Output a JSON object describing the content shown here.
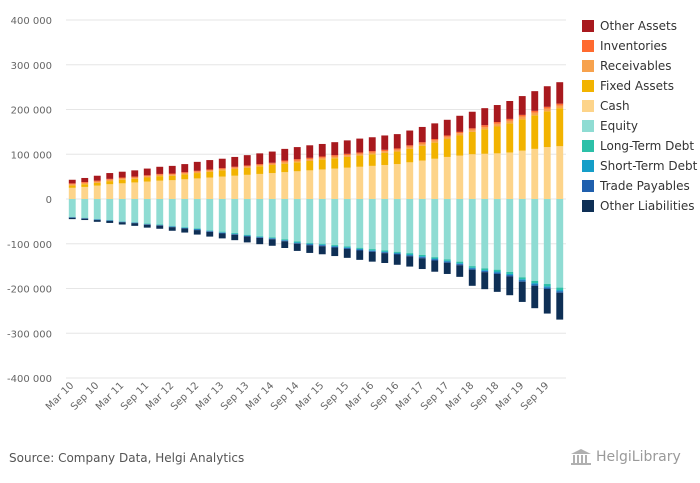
{
  "colors": {
    "other_assets": "#a8191e",
    "inventories": "#ff6a2f",
    "receivables": "#f7a24d",
    "fixed_assets": "#f2b300",
    "cash": "#fdd48a",
    "equity": "#8fdcd3",
    "long_term_debt": "#2cc0a8",
    "short_term_debt": "#159ec8",
    "trade_payables": "#1f5fad",
    "other_liabilities": "#0e2f55",
    "grid": "#e6e6e6",
    "axis_text": "#666666"
  },
  "legend": [
    {
      "label": "Other Assets",
      "color": "#a8191e"
    },
    {
      "label": "Inventories",
      "color": "#ff6a2f"
    },
    {
      "label": "Receivables",
      "color": "#f7a24d"
    },
    {
      "label": "Fixed Assets",
      "color": "#f2b300"
    },
    {
      "label": "Cash",
      "color": "#fdd48a"
    },
    {
      "label": "Equity",
      "color": "#8fdcd3"
    },
    {
      "label": "Long-Term Debt",
      "color": "#2cc0a8"
    },
    {
      "label": "Short-Term Debt",
      "color": "#159ec8"
    },
    {
      "label": "Trade Payables",
      "color": "#1f5fad"
    },
    {
      "label": "Other Liabilities",
      "color": "#0e2f55"
    }
  ],
  "footer": {
    "source": "Source: Company Data, Helgi Analytics",
    "brand": "HelgiLibrary"
  },
  "chart_data": {
    "type": "bar",
    "stacked": true,
    "ylim": [
      -400000,
      400000
    ],
    "yticks": [
      400000,
      300000,
      200000,
      100000,
      0,
      -100000,
      -200000,
      -300000,
      -400000
    ],
    "ytick_labels": [
      "400 000",
      "300 000",
      "200 000",
      "100 000",
      "0",
      "-100 000",
      "-200 000",
      "-300 000",
      "-400 000"
    ],
    "xtick_labels": [
      "Mar 10",
      "Sep 10",
      "Mar 11",
      "Sep 11",
      "Mar 12",
      "Sep 12",
      "Mar 13",
      "Sep 13",
      "Mar 14",
      "Sep 14",
      "Mar 15",
      "Sep 15",
      "Mar 16",
      "Sep 16",
      "Mar 17",
      "Sep 17",
      "Mar 18",
      "Sep 18",
      "Mar 19",
      "Sep 19"
    ],
    "legend_position": "right",
    "grid": true,
    "categories": [
      "Mar 10",
      "Jun 10",
      "Sep 10",
      "Dec 10",
      "Mar 11",
      "Jun 11",
      "Sep 11",
      "Dec 11",
      "Mar 12",
      "Jun 12",
      "Sep 12",
      "Dec 12",
      "Mar 13",
      "Jun 13",
      "Sep 13",
      "Dec 13",
      "Mar 14",
      "Jun 14",
      "Sep 14",
      "Dec 14",
      "Mar 15",
      "Jun 15",
      "Sep 15",
      "Dec 15",
      "Mar 16",
      "Jun 16",
      "Sep 16",
      "Dec 16",
      "Mar 17",
      "Jun 17",
      "Sep 17",
      "Dec 17",
      "Mar 18",
      "Jun 18",
      "Sep 18",
      "Dec 18",
      "Mar 19",
      "Jun 19",
      "Sep 19",
      "Dec 19"
    ],
    "series": [
      {
        "name": "Cash",
        "key": "cash",
        "values": [
          25000,
          27000,
          30000,
          33000,
          35000,
          37000,
          39000,
          41000,
          42000,
          44000,
          46000,
          48000,
          50000,
          52000,
          54000,
          56000,
          58000,
          60000,
          62000,
          64000,
          66000,
          68000,
          70000,
          72000,
          74000,
          76000,
          78000,
          82000,
          86000,
          90000,
          94000,
          97000,
          100000,
          101000,
          102000,
          104000,
          108000,
          112000,
          116000,
          118000
        ]
      },
      {
        "name": "Fixed Assets",
        "key": "fixed_assets",
        "values": [
          5000,
          6000,
          6000,
          7000,
          8000,
          8000,
          9000,
          10000,
          10000,
          11000,
          12000,
          13000,
          14000,
          15000,
          16000,
          17000,
          18000,
          19000,
          20000,
          21000,
          22000,
          23000,
          24000,
          25000,
          26000,
          27000,
          28000,
          30000,
          33000,
          36000,
          40000,
          45000,
          50000,
          55000,
          60000,
          65000,
          70000,
          75000,
          80000,
          85000
        ]
      },
      {
        "name": "Receivables",
        "key": "receivables",
        "values": [
          3000,
          3000,
          3000,
          3000,
          3000,
          3000,
          3000,
          3000,
          3000,
          3000,
          3000,
          3000,
          3000,
          3000,
          3000,
          3000,
          3000,
          4000,
          4000,
          4000,
          4000,
          4000,
          4000,
          4000,
          4000,
          4000,
          4000,
          5000,
          5000,
          5000,
          5000,
          5000,
          5000,
          5000,
          6000,
          6000,
          6000,
          6000,
          6000,
          6000
        ]
      },
      {
        "name": "Inventories",
        "key": "inventories",
        "values": [
          2000,
          2000,
          2000,
          2000,
          2000,
          2000,
          2000,
          2000,
          2000,
          2000,
          2000,
          2000,
          2000,
          2000,
          2000,
          2000,
          2000,
          3000,
          3000,
          3000,
          3000,
          3000,
          3000,
          3000,
          3000,
          3000,
          3000,
          3000,
          3000,
          3000,
          3000,
          3000,
          3000,
          4000,
          4000,
          4000,
          4000,
          4000,
          4000,
          4000
        ]
      },
      {
        "name": "Other Assets",
        "key": "other_assets",
        "values": [
          8000,
          9000,
          11000,
          13000,
          13000,
          14000,
          15000,
          16000,
          17000,
          18000,
          20000,
          21000,
          21000,
          22000,
          23000,
          24000,
          25000,
          26000,
          27000,
          28000,
          28000,
          29000,
          30000,
          31000,
          31000,
          32000,
          32000,
          33000,
          34000,
          35000,
          35000,
          36000,
          37000,
          38000,
          38000,
          40000,
          42000,
          44000,
          46000,
          48000
        ]
      },
      {
        "name": "Equity",
        "key": "equity",
        "values": [
          -40000,
          -42000,
          -45000,
          -47000,
          -50000,
          -52000,
          -55000,
          -57000,
          -60000,
          -63000,
          -66000,
          -70000,
          -73000,
          -76000,
          -80000,
          -83000,
          -86000,
          -90000,
          -95000,
          -98000,
          -100000,
          -103000,
          -106000,
          -109000,
          -112000,
          -115000,
          -118000,
          -121000,
          -125000,
          -130000,
          -135000,
          -140000,
          -150000,
          -155000,
          -158000,
          -163000,
          -175000,
          -183000,
          -190000,
          -198000
        ]
      },
      {
        "name": "Long-Term Debt",
        "key": "long_term_debt",
        "values": [
          -500,
          -500,
          -500,
          -500,
          -500,
          -500,
          -1000,
          -1000,
          -1000,
          -1000,
          -1000,
          -1000,
          -1500,
          -1500,
          -1500,
          -1500,
          -1500,
          -2000,
          -2000,
          -2000,
          -2000,
          -2000,
          -2000,
          -2500,
          -2500,
          -2500,
          -2500,
          -3000,
          -3000,
          -3000,
          -3000,
          -3500,
          -3500,
          -4000,
          -4000,
          -4500,
          -4500,
          -5000,
          -5000,
          -5500
        ]
      },
      {
        "name": "Short-Term Debt",
        "key": "short_term_debt",
        "values": [
          -500,
          -500,
          -500,
          -500,
          -500,
          -500,
          -500,
          -500,
          -1000,
          -1000,
          -1000,
          -1000,
          -1000,
          -1000,
          -1000,
          -1000,
          -1000,
          -1000,
          -1500,
          -1500,
          -1500,
          -1500,
          -1500,
          -1500,
          -1500,
          -1500,
          -1500,
          -2000,
          -2000,
          -2000,
          -2000,
          -2000,
          -2000,
          -2000,
          -2500,
          -2500,
          -2500,
          -3000,
          -3000,
          -3000
        ]
      },
      {
        "name": "Trade Payables",
        "key": "trade_payables",
        "values": [
          -1000,
          -1000,
          -1000,
          -1000,
          -1000,
          -1000,
          -1000,
          -1000,
          -1000,
          -1000,
          -1500,
          -1500,
          -1500,
          -1500,
          -1500,
          -1500,
          -1500,
          -1500,
          -1500,
          -2000,
          -2000,
          -2000,
          -2000,
          -2000,
          -2000,
          -2000,
          -2000,
          -2000,
          -2500,
          -2500,
          -2500,
          -2500,
          -2500,
          -2500,
          -3000,
          -3000,
          -3000,
          -3000,
          -3000,
          -3000
        ]
      },
      {
        "name": "Other Liabilities",
        "key": "other_liabilities",
        "values": [
          -3000,
          -3000,
          -4000,
          -4500,
          -5000,
          -6000,
          -6500,
          -7000,
          -8000,
          -9000,
          -10000,
          -10500,
          -11000,
          -12000,
          -13000,
          -14000,
          -14500,
          -15000,
          -16000,
          -17000,
          -18000,
          -19000,
          -20000,
          -21000,
          -22000,
          -22000,
          -23000,
          -23000,
          -24000,
          -25000,
          -25000,
          -26000,
          -36000,
          -38000,
          -40000,
          -42000,
          -45000,
          -50000,
          -55000,
          -60000
        ]
      }
    ]
  }
}
